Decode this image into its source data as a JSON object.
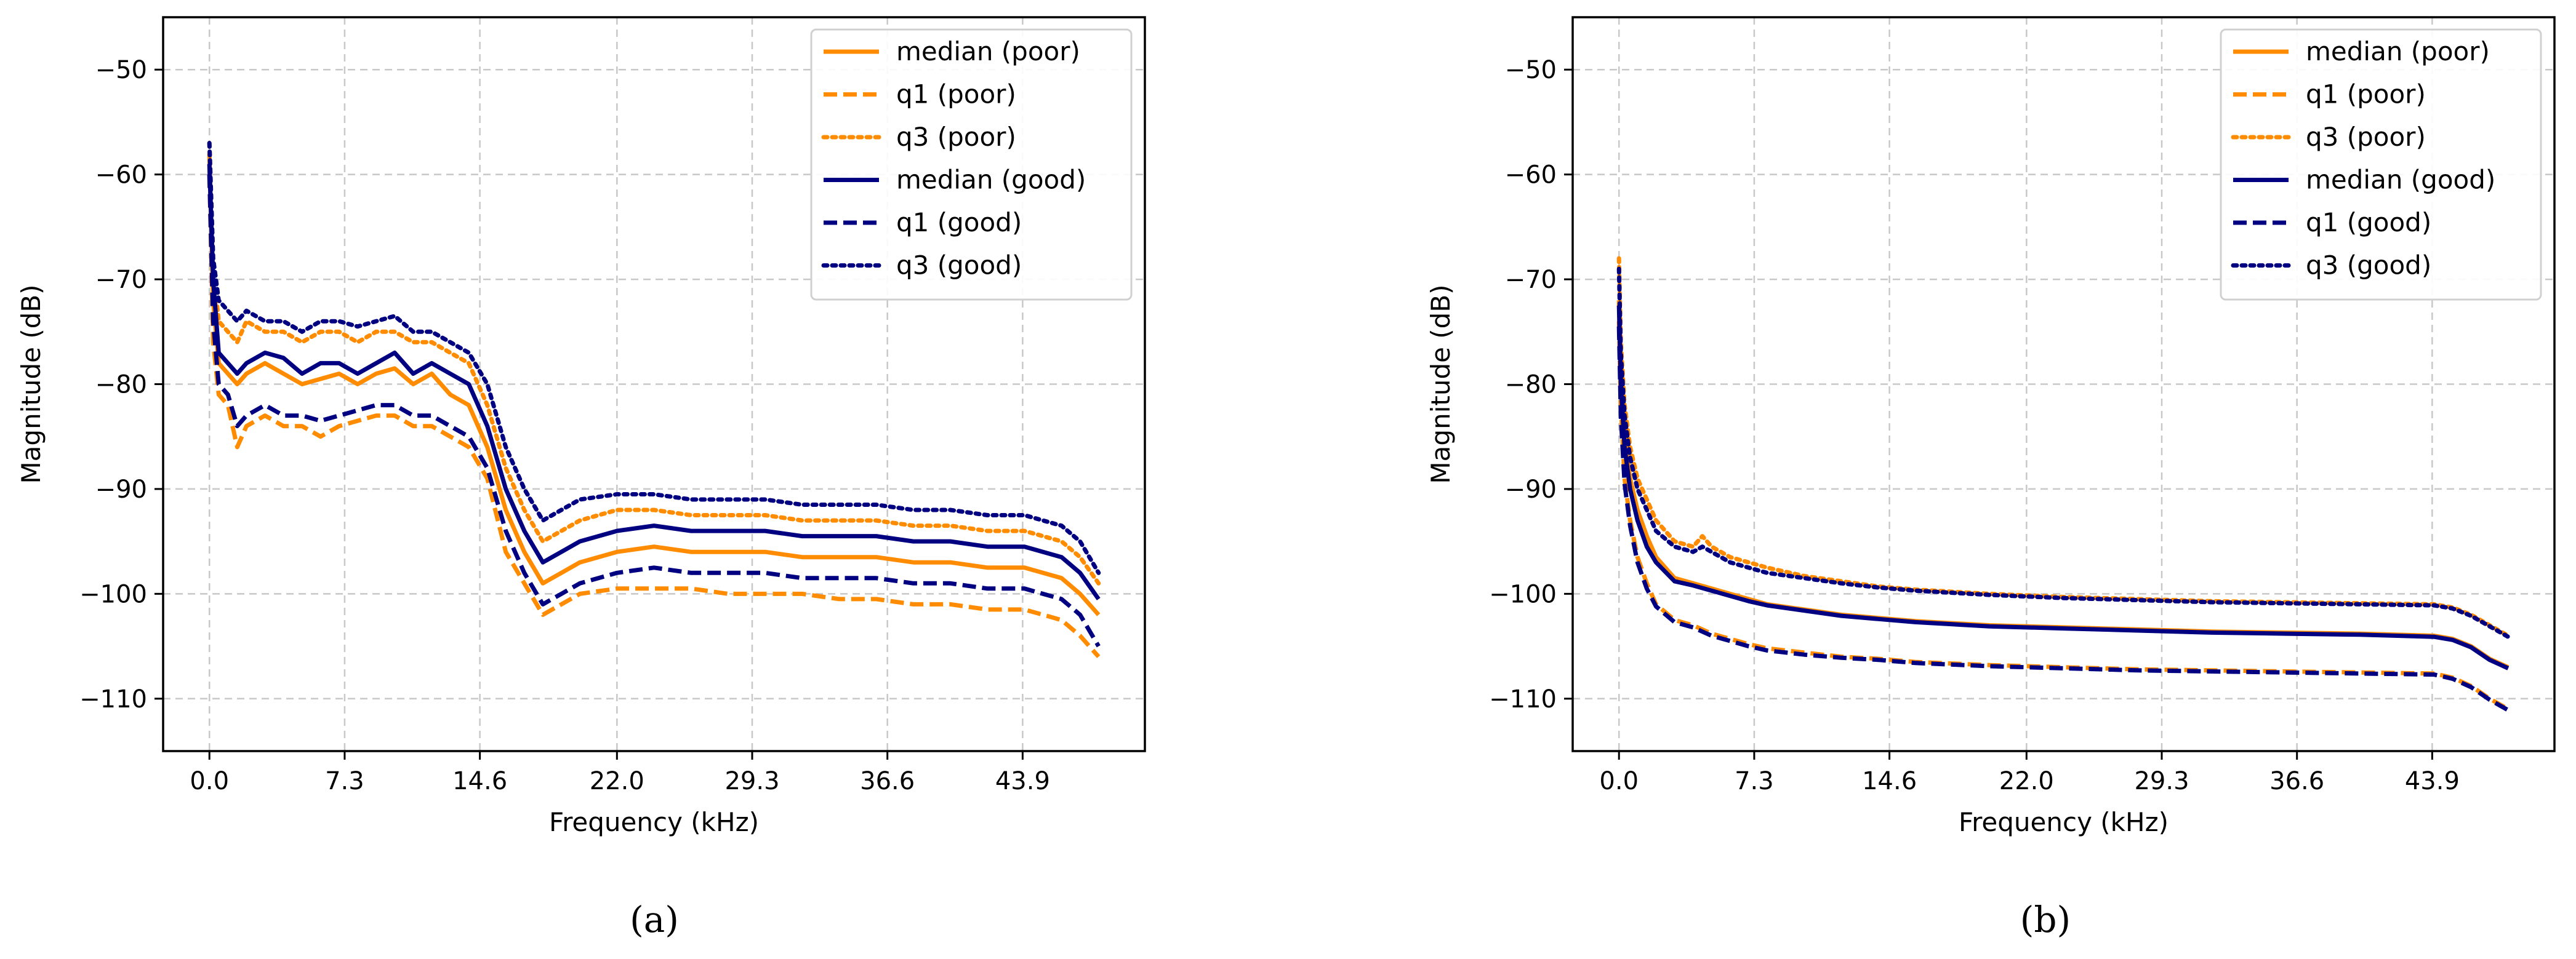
{
  "panels": [
    {
      "caption": "(a)",
      "caption_letter": "a"
    },
    {
      "caption": "(b)",
      "caption_letter": "b"
    }
  ],
  "chart_data": [
    {
      "type": "line",
      "panel": "a",
      "xlabel": "Frequency (kHz)",
      "ylabel": "Magnitude (dB)",
      "xlim": [
        -2.5,
        50.5
      ],
      "ylim": [
        -115,
        -45
      ],
      "xticks": [
        0.0,
        7.3,
        14.6,
        22.0,
        29.3,
        36.6,
        43.9
      ],
      "xtick_labels": [
        "0.0",
        "7.3",
        "14.6",
        "22.0",
        "29.3",
        "36.6",
        "43.9"
      ],
      "yticks": [
        -50,
        -60,
        -70,
        -80,
        -90,
        -100,
        -110
      ],
      "ytick_labels": [
        "−50",
        "−60",
        "−70",
        "−80",
        "−90",
        "−100",
        "−110"
      ],
      "grid": true,
      "legend_position": "top-right",
      "colors": {
        "poor": "#FF8C00",
        "good": "#000080"
      },
      "series": [
        {
          "name": "median (poor)",
          "color": "#FF8C00",
          "style": "solid",
          "x": [
            0,
            0.2,
            0.5,
            1,
            1.5,
            2,
            3,
            4,
            5,
            6,
            7,
            8,
            9,
            10,
            11,
            12,
            13,
            14,
            15,
            16,
            17,
            18,
            19,
            20,
            22,
            24,
            26,
            28,
            30,
            32,
            34,
            36,
            38,
            40,
            42,
            44,
            45,
            46,
            47,
            48
          ],
          "values": [
            -58,
            -72,
            -78,
            -79,
            -80,
            -79,
            -78,
            -79,
            -80,
            -79.5,
            -79,
            -80,
            -79,
            -78.5,
            -80,
            -79,
            -81,
            -82,
            -86,
            -92,
            -96,
            -99,
            -98,
            -97,
            -96,
            -95.5,
            -96,
            -96,
            -96,
            -96.5,
            -96.5,
            -96.5,
            -97,
            -97,
            -97.5,
            -97.5,
            -98,
            -98.5,
            -100,
            -102
          ]
        },
        {
          "name": "q1 (poor)",
          "color": "#FF8C00",
          "style": "dashed",
          "x": [
            0,
            0.2,
            0.5,
            1,
            1.5,
            2,
            3,
            4,
            5,
            6,
            7,
            8,
            9,
            10,
            11,
            12,
            13,
            14,
            15,
            16,
            17,
            18,
            19,
            20,
            22,
            24,
            26,
            28,
            30,
            32,
            34,
            36,
            38,
            40,
            42,
            44,
            45,
            46,
            47,
            48
          ],
          "values": [
            -60,
            -76,
            -81,
            -82,
            -86,
            -84,
            -83,
            -84,
            -84,
            -85,
            -84,
            -83.5,
            -83,
            -83,
            -84,
            -84,
            -85,
            -86,
            -89,
            -96,
            -99,
            -102,
            -101,
            -100,
            -99.5,
            -99.5,
            -99.5,
            -100,
            -100,
            -100,
            -100.5,
            -100.5,
            -101,
            -101,
            -101.5,
            -101.5,
            -102,
            -102.5,
            -104,
            -106
          ]
        },
        {
          "name": "q3 (poor)",
          "color": "#FF8C00",
          "style": "dotted",
          "x": [
            0,
            0.2,
            0.5,
            1,
            1.5,
            2,
            3,
            4,
            5,
            6,
            7,
            8,
            9,
            10,
            11,
            12,
            13,
            14,
            15,
            16,
            17,
            18,
            19,
            20,
            22,
            24,
            26,
            28,
            30,
            32,
            34,
            36,
            38,
            40,
            42,
            44,
            45,
            46,
            47,
            48
          ],
          "values": [
            -57,
            -69,
            -74,
            -75,
            -76,
            -74,
            -75,
            -75,
            -76,
            -75,
            -75,
            -76,
            -75,
            -75,
            -76,
            -76,
            -77,
            -78,
            -82,
            -88,
            -92,
            -95,
            -94,
            -93,
            -92,
            -92,
            -92.5,
            -92.5,
            -92.5,
            -93,
            -93,
            -93,
            -93.5,
            -93.5,
            -94,
            -94,
            -94.5,
            -95,
            -96.5,
            -99
          ]
        },
        {
          "name": "median (good)",
          "color": "#000080",
          "style": "solid",
          "x": [
            0,
            0.2,
            0.5,
            1,
            1.5,
            2,
            3,
            4,
            5,
            6,
            7,
            8,
            9,
            10,
            11,
            12,
            13,
            14,
            15,
            16,
            17,
            18,
            19,
            20,
            22,
            24,
            26,
            28,
            30,
            32,
            34,
            36,
            38,
            40,
            42,
            44,
            45,
            46,
            47,
            48
          ],
          "values": [
            -59,
            -70,
            -77,
            -78,
            -79,
            -78,
            -77,
            -77.5,
            -79,
            -78,
            -78,
            -79,
            -78,
            -77,
            -79,
            -78,
            -79,
            -80,
            -84,
            -90,
            -94,
            -97,
            -96,
            -95,
            -94,
            -93.5,
            -94,
            -94,
            -94,
            -94.5,
            -94.5,
            -94.5,
            -95,
            -95,
            -95.5,
            -95.5,
            -96,
            -96.5,
            -98,
            -100.5
          ]
        },
        {
          "name": "q1 (good)",
          "color": "#000080",
          "style": "dashed",
          "x": [
            0,
            0.2,
            0.5,
            1,
            1.5,
            2,
            3,
            4,
            5,
            6,
            7,
            8,
            9,
            10,
            11,
            12,
            13,
            14,
            15,
            16,
            17,
            18,
            19,
            20,
            22,
            24,
            26,
            28,
            30,
            32,
            34,
            36,
            38,
            40,
            42,
            44,
            45,
            46,
            47,
            48
          ],
          "values": [
            -60,
            -74,
            -80,
            -81,
            -84,
            -83,
            -82,
            -83,
            -83,
            -83.5,
            -83,
            -82.5,
            -82,
            -82,
            -83,
            -83,
            -84,
            -85,
            -88,
            -94,
            -98,
            -101,
            -100,
            -99,
            -98,
            -97.5,
            -98,
            -98,
            -98,
            -98.5,
            -98.5,
            -98.5,
            -99,
            -99,
            -99.5,
            -99.5,
            -100,
            -100.5,
            -102,
            -105
          ]
        },
        {
          "name": "q3 (good)",
          "color": "#000080",
          "style": "dotted",
          "x": [
            0,
            0.2,
            0.5,
            1,
            1.5,
            2,
            3,
            4,
            5,
            6,
            7,
            8,
            9,
            10,
            11,
            12,
            13,
            14,
            15,
            16,
            17,
            18,
            19,
            20,
            22,
            24,
            26,
            28,
            30,
            32,
            34,
            36,
            38,
            40,
            42,
            44,
            45,
            46,
            47,
            48
          ],
          "values": [
            -57,
            -68,
            -72,
            -73,
            -74,
            -73,
            -74,
            -74,
            -75,
            -74,
            -74,
            -74.5,
            -74,
            -73.5,
            -75,
            -75,
            -76,
            -77,
            -80,
            -86,
            -90,
            -93,
            -92,
            -91,
            -90.5,
            -90.5,
            -91,
            -91,
            -91,
            -91.5,
            -91.5,
            -91.5,
            -92,
            -92,
            -92.5,
            -92.5,
            -93,
            -93.5,
            -95,
            -98
          ]
        }
      ]
    },
    {
      "type": "line",
      "panel": "b",
      "xlabel": "Frequency (kHz)",
      "ylabel": "Magnitude (dB)",
      "xlim": [
        -2.5,
        50.5
      ],
      "ylim": [
        -115,
        -45
      ],
      "xticks": [
        0.0,
        7.3,
        14.6,
        22.0,
        29.3,
        36.6,
        43.9
      ],
      "xtick_labels": [
        "0.0",
        "7.3",
        "14.6",
        "22.0",
        "29.3",
        "36.6",
        "43.9"
      ],
      "yticks": [
        -50,
        -60,
        -70,
        -80,
        -90,
        -100,
        -110
      ],
      "ytick_labels": [
        "−50",
        "−60",
        "−70",
        "−80",
        "−90",
        "−100",
        "−110"
      ],
      "grid": true,
      "legend_position": "top-right",
      "colors": {
        "poor": "#FF8C00",
        "good": "#000080"
      },
      "series": [
        {
          "name": "median (poor)",
          "color": "#FF8C00",
          "style": "solid",
          "x": [
            0,
            0.1,
            0.3,
            0.6,
            1,
            1.5,
            2,
            3,
            4,
            5,
            6,
            7,
            8,
            10,
            12,
            14,
            16,
            20,
            24,
            28,
            32,
            36,
            40,
            44,
            45,
            46,
            47,
            48
          ],
          "values": [
            -72,
            -79,
            -85,
            -89,
            -92,
            -94.5,
            -96.5,
            -98.5,
            -99,
            -99.5,
            -100,
            -100.5,
            -101,
            -101.5,
            -102,
            -102.3,
            -102.6,
            -103,
            -103.2,
            -103.4,
            -103.6,
            -103.7,
            -103.8,
            -104,
            -104.3,
            -105,
            -106.2,
            -107
          ]
        },
        {
          "name": "q1 (poor)",
          "color": "#FF8C00",
          "style": "dashed",
          "x": [
            0,
            0.1,
            0.3,
            0.6,
            1,
            1.5,
            2,
            3,
            4,
            5,
            6,
            7,
            8,
            10,
            12,
            14,
            16,
            20,
            24,
            28,
            32,
            36,
            40,
            44,
            45,
            46,
            47,
            48
          ],
          "values": [
            -74,
            -82,
            -89,
            -93,
            -96.5,
            -99,
            -101,
            -102.5,
            -103,
            -103.8,
            -104.3,
            -104.8,
            -105.2,
            -105.6,
            -106,
            -106.2,
            -106.5,
            -106.8,
            -107,
            -107.2,
            -107.3,
            -107.4,
            -107.5,
            -107.6,
            -108,
            -108.8,
            -110,
            -111
          ]
        },
        {
          "name": "q3 (poor)",
          "color": "#FF8C00",
          "style": "dotted",
          "x": [
            0,
            0.1,
            0.3,
            0.6,
            1,
            1.5,
            2,
            3,
            4,
            4.5,
            5,
            6,
            7,
            8,
            10,
            12,
            14,
            16,
            20,
            24,
            28,
            32,
            36,
            40,
            44,
            45,
            46,
            47,
            48
          ],
          "values": [
            -68,
            -76,
            -82,
            -86,
            -89,
            -91,
            -93,
            -95,
            -95.5,
            -94.5,
            -95.5,
            -96.5,
            -97,
            -97.5,
            -98.3,
            -98.8,
            -99.3,
            -99.6,
            -100,
            -100.3,
            -100.5,
            -100.7,
            -100.8,
            -100.9,
            -101,
            -101.3,
            -102,
            -103,
            -104
          ]
        },
        {
          "name": "median (good)",
          "color": "#000080",
          "style": "solid",
          "x": [
            0,
            0.1,
            0.3,
            0.6,
            1,
            1.5,
            2,
            3,
            4,
            5,
            6,
            7,
            8,
            10,
            12,
            14,
            16,
            20,
            24,
            28,
            32,
            36,
            40,
            44,
            45,
            46,
            47,
            48
          ],
          "values": [
            -72.5,
            -80,
            -86,
            -90,
            -93,
            -95.5,
            -97,
            -98.8,
            -99.2,
            -99.7,
            -100.2,
            -100.7,
            -101.1,
            -101.6,
            -102.1,
            -102.4,
            -102.7,
            -103.1,
            -103.3,
            -103.5,
            -103.7,
            -103.8,
            -103.9,
            -104.1,
            -104.4,
            -105.1,
            -106.3,
            -107.1
          ]
        },
        {
          "name": "q1 (good)",
          "color": "#000080",
          "style": "dashed",
          "x": [
            0,
            0.1,
            0.3,
            0.6,
            1,
            1.5,
            2,
            3,
            4,
            5,
            6,
            7,
            8,
            10,
            12,
            14,
            16,
            20,
            24,
            28,
            32,
            36,
            40,
            44,
            45,
            46,
            47,
            48
          ],
          "values": [
            -74.5,
            -83,
            -89.5,
            -93.5,
            -97,
            -99.5,
            -101.2,
            -102.7,
            -103.2,
            -104,
            -104.5,
            -105,
            -105.4,
            -105.8,
            -106.1,
            -106.3,
            -106.6,
            -106.9,
            -107.1,
            -107.3,
            -107.4,
            -107.5,
            -107.6,
            -107.7,
            -108.1,
            -108.9,
            -110.1,
            -111.1
          ]
        },
        {
          "name": "q3 (good)",
          "color": "#000080",
          "style": "dotted",
          "x": [
            0,
            0.1,
            0.3,
            0.6,
            1,
            1.5,
            2,
            3,
            4,
            4.5,
            5,
            6,
            7,
            8,
            10,
            12,
            14,
            16,
            20,
            24,
            28,
            32,
            36,
            40,
            44,
            45,
            46,
            47,
            48
          ],
          "values": [
            -69,
            -77,
            -83,
            -87,
            -90,
            -92,
            -94,
            -95.5,
            -96,
            -95.5,
            -96,
            -97,
            -97.5,
            -98,
            -98.5,
            -99,
            -99.4,
            -99.7,
            -100.1,
            -100.4,
            -100.6,
            -100.8,
            -100.9,
            -101,
            -101.1,
            -101.4,
            -102.1,
            -103.1,
            -104.1
          ]
        }
      ]
    }
  ]
}
